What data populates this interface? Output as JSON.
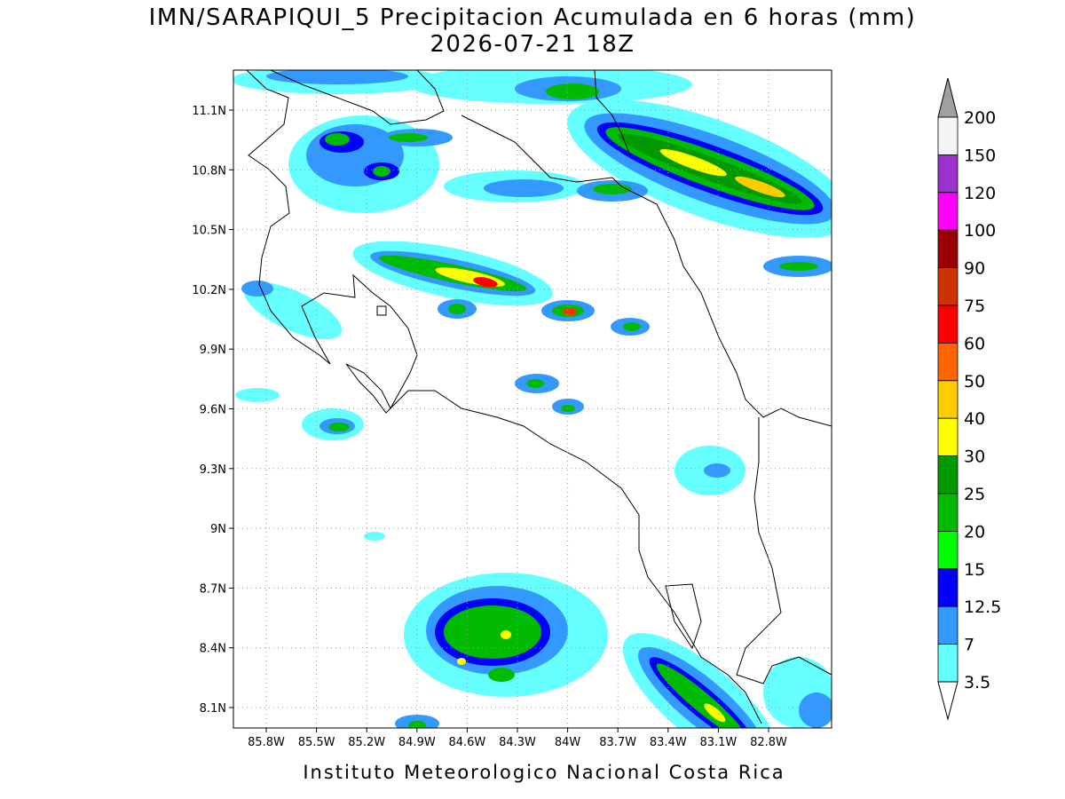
{
  "header": {
    "title": "IMN/SARAPIQUI_5 Precipitacion Acumulada en 6 horas (mm)",
    "subtitle": "2026-07-21 18Z"
  },
  "map": {
    "lat_labels": [
      "11.1N",
      "10.8N",
      "10.5N",
      "10.2N",
      "9.9N",
      "9.6N",
      "9.3N",
      "9N",
      "8.7N",
      "8.4N",
      "8.1N"
    ],
    "lon_labels": [
      "85.8W",
      "85.5W",
      "85.2W",
      "84.9W",
      "84.6W",
      "84.3W",
      "84W",
      "83.7W",
      "83.4W",
      "83.1W",
      "82.8W"
    ]
  },
  "legend": {
    "labels": [
      200,
      150,
      120,
      100,
      90,
      75,
      60,
      50,
      40,
      30,
      25,
      20,
      15,
      12.5,
      7,
      3.5
    ],
    "colors": [
      "#f4f4f4",
      "#9933cc",
      "#ff00ff",
      "#990000",
      "#cc3300",
      "#ff0000",
      "#ff6600",
      "#ffcc00",
      "#ffff00",
      "#009900",
      "#00bb00",
      "#00ff00",
      "#0000ff",
      "#3399ff",
      "#66ffff"
    ],
    "over_color": "#a0a0a0",
    "under_color": "#ffffff"
  },
  "footer": "Instituto Meteorologico Nacional Costa Rica"
}
